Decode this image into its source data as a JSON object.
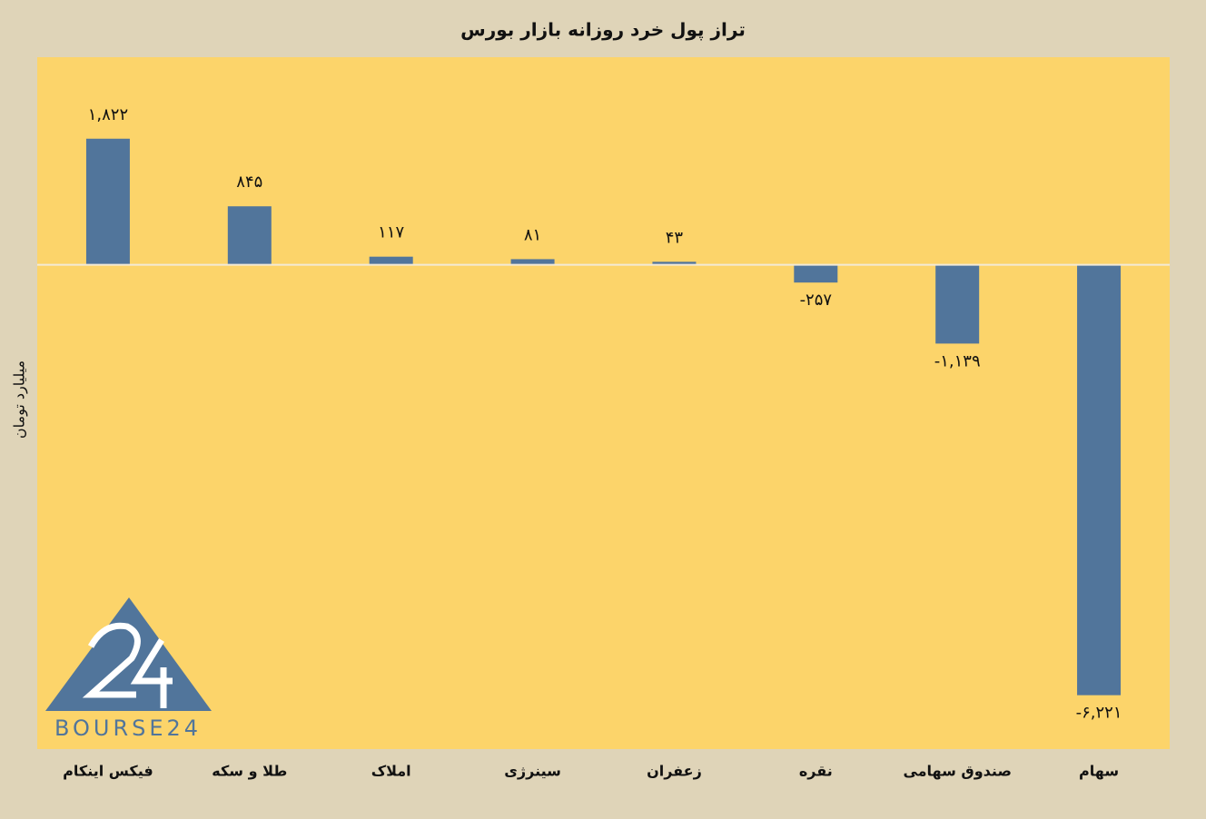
{
  "chart_data": {
    "type": "bar",
    "title": "تراز پول خرد روزانه بازار بورس",
    "y_label": "میلیارد تومان",
    "categories": [
      "فیکس اینکام",
      "طلا و سکه",
      "املاک",
      "سینرژی",
      "زعفران",
      "نقره",
      "صندوق سهامی",
      "سهام"
    ],
    "values": [
      1822,
      845,
      117,
      81,
      43,
      -257,
      -1139,
      -6221
    ],
    "value_labels": [
      "۱,۸۲۲",
      "۸۴۵",
      "۱۱۷",
      "۸۱",
      "۴۳",
      "-۲۵۷",
      "-۱,۱۳۹",
      "-۶,۲۲۱"
    ],
    "color": "#51759b",
    "ylim": [
      -7000,
      3000
    ],
    "watermark": "BOURSE24"
  }
}
